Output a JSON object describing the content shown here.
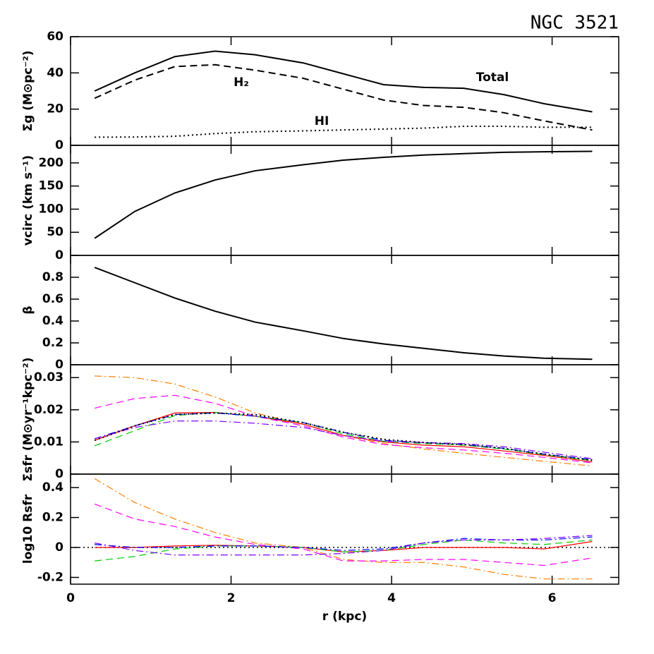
{
  "chart_data": [
    {
      "type": "line",
      "title": "NGC 3521",
      "ylabel": "Σg (M⊙pc⁻²)",
      "x": [
        0.3,
        0.8,
        1.3,
        1.8,
        2.3,
        2.9,
        3.4,
        3.9,
        4.4,
        4.9,
        5.4,
        5.9,
        6.5
      ],
      "xlim": [
        0,
        6.83
      ],
      "xticks": [
        0,
        2,
        4,
        6
      ],
      "ylim": [
        0,
        60
      ],
      "yticks": [
        0,
        20,
        40,
        60
      ],
      "annotations": [
        "Total",
        "H₂",
        "HI"
      ],
      "series": [
        {
          "color": "#000000",
          "style": "solid",
          "values": [
            30,
            40,
            49,
            52,
            50,
            45.5,
            39.5,
            33.5,
            32,
            31.5,
            28,
            23,
            18.5
          ]
        },
        {
          "color": "#000000",
          "style": "dashed",
          "values": [
            26,
            36,
            43.5,
            44.5,
            41.5,
            37,
            31,
            25,
            22,
            21,
            18,
            13.5,
            8.5
          ]
        },
        {
          "color": "#000000",
          "style": "dotted",
          "values": [
            4.5,
            4.6,
            5,
            6.5,
            7.5,
            8,
            8.5,
            9,
            9.5,
            10.5,
            10.5,
            10,
            10
          ]
        }
      ]
    },
    {
      "type": "line",
      "ylabel": "vcirc (km s⁻¹)",
      "x": [
        0.3,
        0.8,
        1.3,
        1.8,
        2.3,
        2.9,
        3.4,
        3.9,
        4.4,
        4.9,
        5.4,
        5.9,
        6.5
      ],
      "xlim": [
        0,
        6.83
      ],
      "xticks": [
        0,
        2,
        4,
        6
      ],
      "ylim": [
        0,
        238
      ],
      "yticks": [
        0,
        50,
        100,
        150,
        200
      ],
      "series": [
        {
          "color": "#000000",
          "style": "solid",
          "values": [
            37,
            95,
            135,
            163,
            183,
            196,
            206,
            212,
            217,
            220,
            223,
            224,
            225
          ]
        }
      ]
    },
    {
      "type": "line",
      "ylabel": "β",
      "x": [
        0.3,
        0.8,
        1.3,
        1.8,
        2.3,
        2.9,
        3.4,
        3.9,
        4.4,
        4.9,
        5.4,
        5.9,
        6.5
      ],
      "xlim": [
        0,
        6.83
      ],
      "xticks": [
        0,
        2,
        4,
        6
      ],
      "ylim": [
        0,
        1
      ],
      "yticks": [
        0,
        0.2,
        0.4,
        0.6,
        0.8
      ],
      "series": [
        {
          "color": "#000000",
          "style": "solid",
          "values": [
            0.89,
            0.75,
            0.61,
            0.49,
            0.39,
            0.31,
            0.24,
            0.19,
            0.15,
            0.11,
            0.08,
            0.06,
            0.05
          ]
        }
      ]
    },
    {
      "type": "line",
      "ylabel": "Σsfr (M⊙yr⁻¹kpc⁻²)",
      "x": [
        0.3,
        0.8,
        1.3,
        1.8,
        2.3,
        2.9,
        3.4,
        3.9,
        4.4,
        4.9,
        5.4,
        5.9,
        6.5
      ],
      "xlim": [
        0,
        6.83
      ],
      "xticks": [
        0,
        2,
        4,
        6
      ],
      "ylim": [
        0,
        0.034
      ],
      "yticks": [
        0,
        0.01,
        0.02,
        0.03
      ],
      "series": [
        {
          "color": "#ff7f00",
          "style": "dashdot",
          "values": [
            0.0305,
            0.03,
            0.028,
            0.024,
            0.019,
            0.0155,
            0.012,
            0.0095,
            0.0078,
            0.0065,
            0.0052,
            0.004,
            0.0025
          ]
        },
        {
          "color": "#ff00ff",
          "style": "dashed",
          "values": [
            0.0205,
            0.0235,
            0.0245,
            0.022,
            0.018,
            0.015,
            0.0115,
            0.0092,
            0.0082,
            0.0075,
            0.0065,
            0.0052,
            0.0035
          ]
        },
        {
          "color": "#ff0000",
          "style": "solid",
          "values": [
            0.0105,
            0.015,
            0.019,
            0.0192,
            0.018,
            0.0155,
            0.012,
            0.01,
            0.009,
            0.0085,
            0.0072,
            0.0058,
            0.0038
          ]
        },
        {
          "color": "#00cc00",
          "style": "dashed",
          "values": [
            0.0088,
            0.0135,
            0.0182,
            0.0192,
            0.018,
            0.016,
            0.0125,
            0.0102,
            0.0095,
            0.009,
            0.0078,
            0.006,
            0.0042
          ]
        },
        {
          "color": "#0000ff",
          "style": "dashdot",
          "values": [
            0.011,
            0.015,
            0.0185,
            0.019,
            0.018,
            0.016,
            0.013,
            0.0105,
            0.0098,
            0.0092,
            0.008,
            0.0062,
            0.0045
          ]
        },
        {
          "color": "#7f00ff",
          "style": "dashdot",
          "values": [
            0.011,
            0.0145,
            0.0165,
            0.0165,
            0.0158,
            0.0145,
            0.012,
            0.0102,
            0.0098,
            0.0095,
            0.0085,
            0.0068,
            0.0048
          ]
        },
        {
          "color": "#000000",
          "style": "dotted",
          "values": [
            0.0105,
            0.015,
            0.0185,
            0.019,
            0.0185,
            0.016,
            0.013,
            0.0108,
            0.0098,
            0.0092,
            0.008,
            0.0062,
            0.0043
          ]
        }
      ]
    },
    {
      "type": "line",
      "ylabel": "log10 Rsfr",
      "xlabel": "r (kpc)",
      "hline": 0,
      "x": [
        0.3,
        0.8,
        1.3,
        1.8,
        2.3,
        2.9,
        3.4,
        3.9,
        4.4,
        4.9,
        5.4,
        5.9,
        6.5
      ],
      "xlim": [
        0,
        6.83
      ],
      "xticks": [
        0,
        2,
        4,
        6
      ],
      "ylim": [
        -0.245,
        0.49
      ],
      "yticks": [
        -0.2,
        0,
        0.2,
        0.4
      ],
      "series": [
        {
          "color": "#ff7f00",
          "style": "dashdot",
          "values": [
            0.46,
            0.3,
            0.19,
            0.1,
            0.03,
            0.0,
            -0.08,
            -0.1,
            -0.1,
            -0.13,
            -0.18,
            -0.21,
            -0.21
          ]
        },
        {
          "color": "#ff00ff",
          "style": "dashed",
          "values": [
            0.29,
            0.19,
            0.14,
            0.07,
            0.02,
            -0.01,
            -0.09,
            -0.09,
            -0.08,
            -0.08,
            -0.1,
            -0.12,
            -0.07
          ]
        },
        {
          "color": "#ff0000",
          "style": "solid",
          "values": [
            0,
            0,
            0.01,
            0.015,
            0.01,
            0,
            -0.03,
            -0.02,
            0.0,
            0.0,
            0.0,
            -0.01,
            0.04
          ]
        },
        {
          "color": "#00cc00",
          "style": "dashed",
          "values": [
            -0.09,
            -0.06,
            -0.01,
            0.01,
            0.01,
            0.0,
            -0.03,
            -0.02,
            0.02,
            0.05,
            0.03,
            0.02,
            0.05
          ]
        },
        {
          "color": "#0000ff",
          "style": "dashdot",
          "values": [
            0.02,
            0.0,
            0.0,
            0.01,
            0.01,
            0.0,
            -0.02,
            -0.01,
            0.03,
            0.06,
            0.05,
            0.05,
            0.07
          ]
        },
        {
          "color": "#7f00ff",
          "style": "dashdot",
          "values": [
            0.03,
            -0.02,
            -0.05,
            -0.05,
            -0.05,
            -0.05,
            -0.04,
            -0.02,
            0.03,
            0.05,
            0.05,
            0.06,
            0.08
          ]
        }
      ]
    }
  ]
}
